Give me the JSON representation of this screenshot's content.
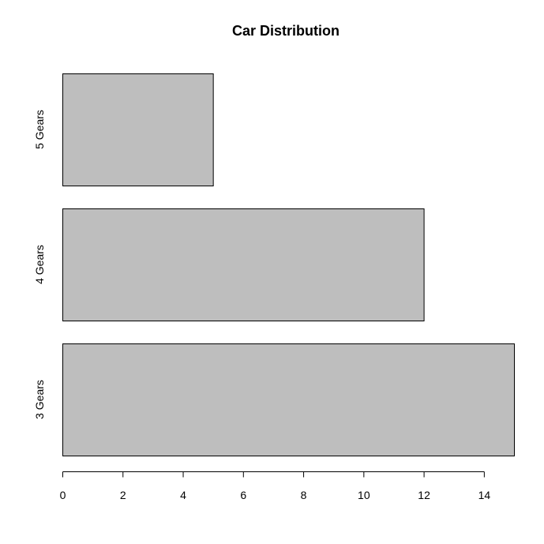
{
  "chart_data": {
    "type": "bar",
    "orientation": "horizontal",
    "title": "Car Distribution",
    "xlabel": "",
    "ylabel": "",
    "categories": [
      "3 Gears",
      "4 Gears",
      "5 Gears"
    ],
    "values": [
      15,
      12,
      5
    ],
    "xlim": [
      0,
      15
    ],
    "x_ticks": [
      0,
      2,
      4,
      6,
      8,
      10,
      12,
      14
    ],
    "bar_color": "#bebebe",
    "border_color": "#000000",
    "grid": false,
    "legend": "none"
  }
}
